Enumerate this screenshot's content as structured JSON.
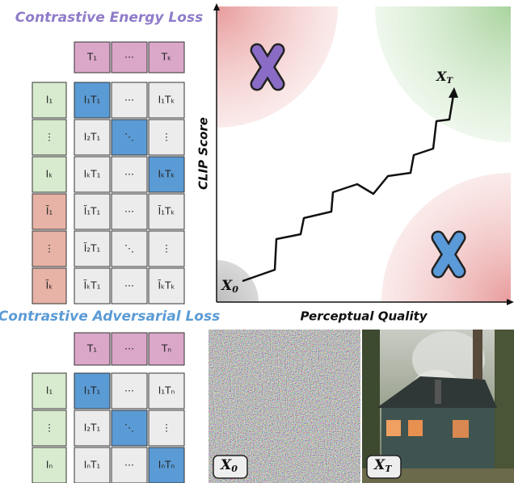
{
  "energy_loss": {
    "title": "Contrastive Energy Loss",
    "header": [
      "T₁",
      "⋯",
      "Tₖ"
    ],
    "rows": [
      {
        "label": "I₁",
        "cells": [
          "I₁T₁",
          "⋯",
          "I₁Tₖ"
        ]
      },
      {
        "label": "⋮",
        "cells": [
          "I₂T₁",
          "⋱",
          "⋮"
        ]
      },
      {
        "label": "Iₖ",
        "cells": [
          "IₖT₁",
          "⋯",
          "IₖTₖ"
        ]
      },
      {
        "label": "Ĩ₁",
        "cells": [
          "Ĩ₁T₁",
          "⋯",
          "Ĩ₁Tₖ"
        ]
      },
      {
        "label": "⋮",
        "cells": [
          "Ĩ₂T₁",
          "⋱",
          "⋮"
        ]
      },
      {
        "label": "Ĩₖ",
        "cells": [
          "ĨₖT₁",
          "⋯",
          "ĨₖTₖ"
        ]
      }
    ]
  },
  "adversarial_loss": {
    "title": "Contrastive Adversarial Loss",
    "header": [
      "T₁",
      "⋯",
      "Tₙ"
    ],
    "rows": [
      {
        "label": "I₁",
        "cells": [
          "I₁T₁",
          "⋯",
          "I₁Tₙ"
        ]
      },
      {
        "label": "⋮",
        "cells": [
          "I₂T₁",
          "⋱",
          "⋮"
        ]
      },
      {
        "label": "Iₙ",
        "cells": [
          "IₙT₁",
          "⋯",
          "IₙTₙ"
        ]
      }
    ]
  },
  "plot": {
    "y_label": "CLIP Score",
    "x_label": "Perceptual Quality",
    "start": {
      "main": "X",
      "sub": "0"
    },
    "end": {
      "main": "X",
      "sub": "T"
    }
  },
  "images": [
    {
      "main": "X",
      "sub": "0"
    },
    {
      "main": "X",
      "sub": "T"
    }
  ]
}
